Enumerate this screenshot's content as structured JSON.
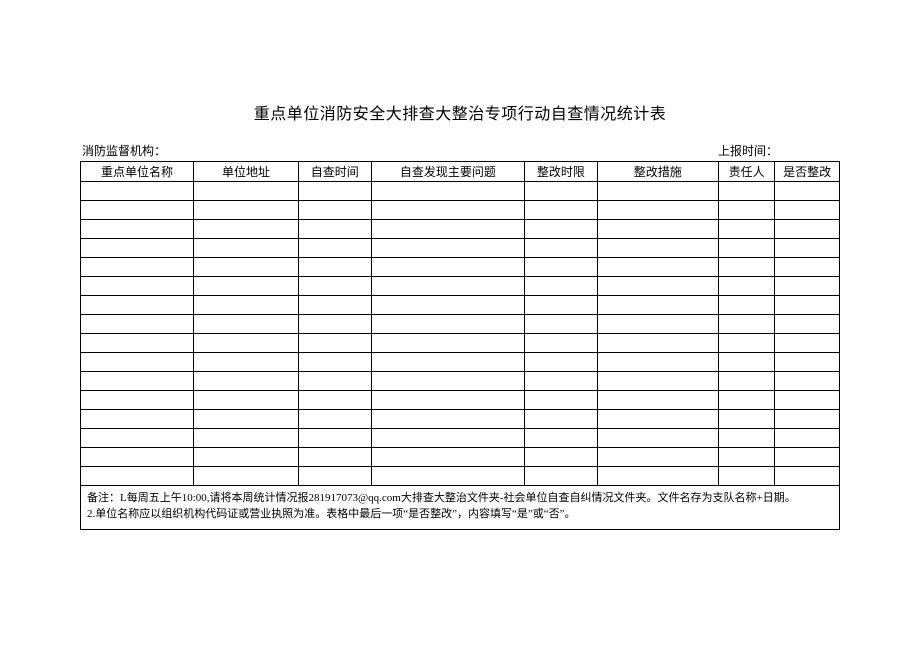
{
  "title": "重点单位消防安全大排查大整治专项行动自查情况统计表",
  "meta": {
    "left_label": "消防监督机构：",
    "right_label": "上报时间："
  },
  "table": {
    "columns": [
      "重点单位名称",
      "单位地址",
      "自查时间",
      "自查发现主要问题",
      "整改时限",
      "整改措施",
      "责任人",
      "是否整改"
    ],
    "row_count": 16
  },
  "notes": {
    "line1": "备注：L每周五上午10:00,请将本周统计情况报281917073@qq.com大排查大整治文件夹-社会单位自查自纠情况文件夹。文件名存为支队名称+日期。",
    "line2": "2.单位名称应以组织机构代码证或营业执照为准。表格中最后一项“是否整改”，内容填写“是”或“否”。"
  }
}
